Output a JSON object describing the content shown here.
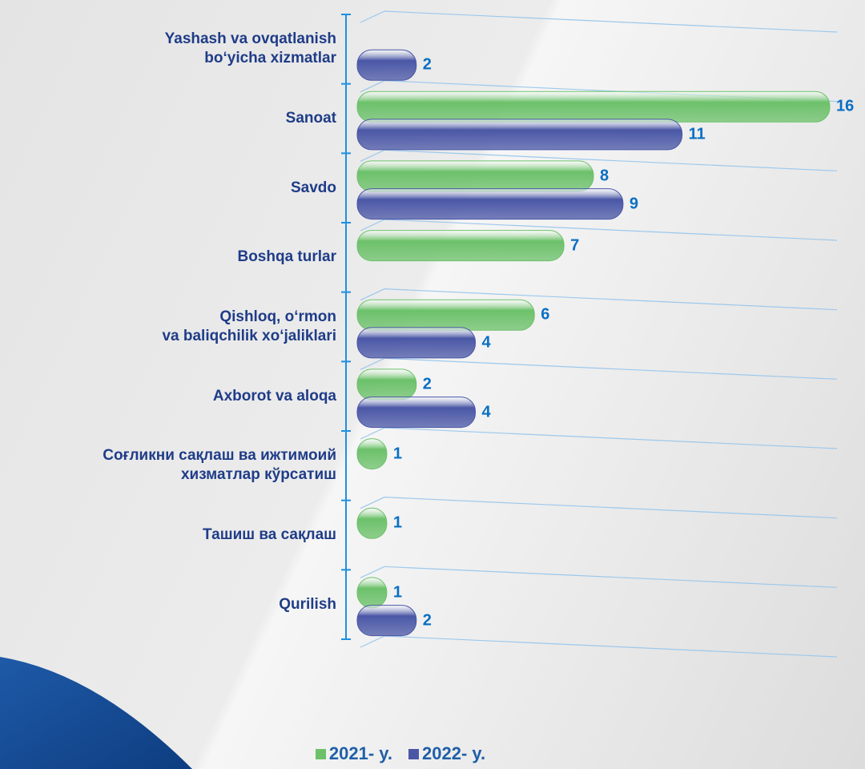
{
  "chart_data": {
    "type": "bar",
    "orientation": "horizontal",
    "categories": [
      "Yashash va ovqatlanish\nbo‘yicha xizmatlar",
      "Sanoat",
      "Savdo",
      "Boshqa turlar",
      "Qishloq, o‘rmon\nva baliqchilik xo‘jaliklari",
      "Axborot va aloqa",
      "Соғликни сақлаш ва ижтимоий\nхизматлар кўрсатиш",
      "Ташиш ва сақлаш",
      "Qurilish"
    ],
    "series": [
      {
        "name": "2021- y.",
        "color": "#6cc16a",
        "values": [
          null,
          16,
          8,
          7,
          6,
          2,
          1,
          1,
          1
        ]
      },
      {
        "name": "2022- y.",
        "color": "#4a57a6",
        "values": [
          2,
          11,
          9,
          null,
          4,
          4,
          null,
          null,
          2
        ]
      }
    ],
    "legend": "bottom"
  }
}
